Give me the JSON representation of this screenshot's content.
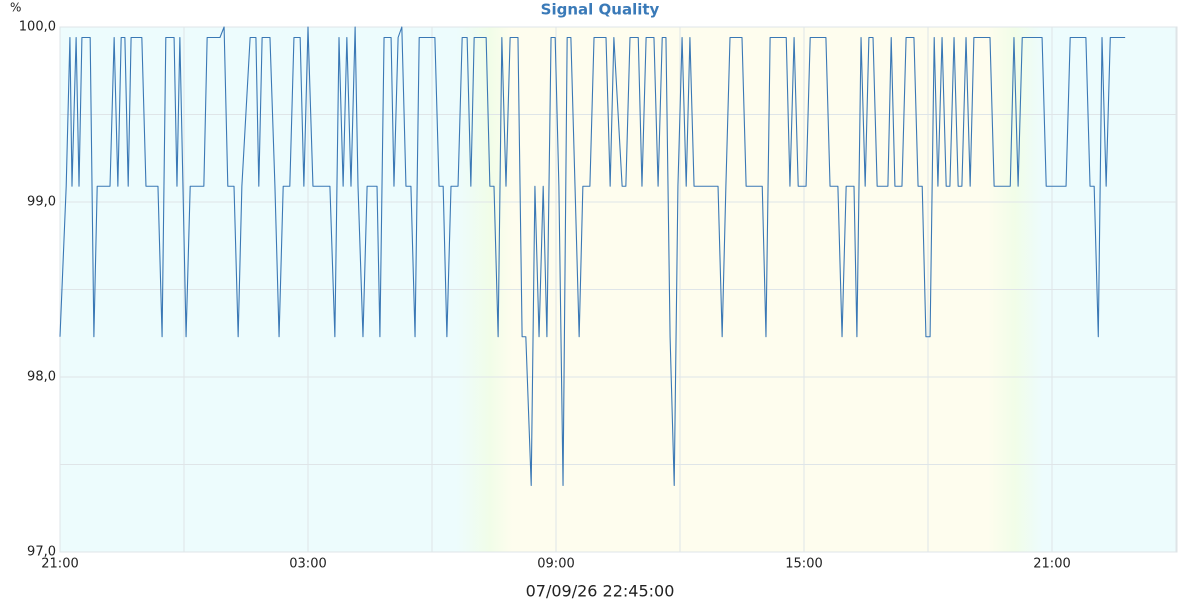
{
  "chart_data": {
    "type": "line",
    "title": "Signal Quality",
    "subtitle": "07/09/26 22:45:00",
    "y_unit": "%",
    "color": "#3a78b5",
    "grid": true,
    "xlim": [
      0,
      27
    ],
    "ylim": [
      97,
      100
    ],
    "xticks": [
      {
        "value": 0,
        "label": "21:00"
      },
      {
        "value": 6,
        "label": "03:00"
      },
      {
        "value": 12,
        "label": "09:00"
      },
      {
        "value": 18,
        "label": "15:00"
      },
      {
        "value": 24,
        "label": "21:00"
      }
    ],
    "xminor": [
      3,
      9,
      15,
      21,
      27
    ],
    "yticks": [
      {
        "value": 97,
        "label": "97,0"
      },
      {
        "value": 98,
        "label": "98,0"
      },
      {
        "value": 99,
        "label": "99,0"
      },
      {
        "value": 100,
        "label": "100,0"
      }
    ],
    "yminor": [
      97.5,
      98.5,
      99.5
    ],
    "x": [
      0,
      0.15,
      0.24,
      0.29,
      0.39,
      0.46,
      0.53,
      0.73,
      0.82,
      0.9,
      1.21,
      1.31,
      1.4,
      1.48,
      1.57,
      1.65,
      1.72,
      1.98,
      2.08,
      2.37,
      2.47,
      2.56,
      2.76,
      2.83,
      2.9,
      3.05,
      3.15,
      3.48,
      3.56,
      3.87,
      3.97,
      4.06,
      4.21,
      4.31,
      4.4,
      4.6,
      4.74,
      4.81,
      4.89,
      5.08,
      5.2,
      5.3,
      5.4,
      5.56,
      5.66,
      5.81,
      5.9,
      6.0,
      6.12,
      6.29,
      6.53,
      6.65,
      6.75,
      6.85,
      6.94,
      7.04,
      7.14,
      7.21,
      7.33,
      7.43,
      7.67,
      7.74,
      7.84,
      8.01,
      8.08,
      8.18,
      8.27,
      8.37,
      8.49,
      8.59,
      8.69,
      9.07,
      9.17,
      9.27,
      9.36,
      9.46,
      9.63,
      9.73,
      9.85,
      9.94,
      10.02,
      10.31,
      10.4,
      10.5,
      10.6,
      10.69,
      10.79,
      10.89,
      11.08,
      11.18,
      11.27,
      11.4,
      11.49,
      11.59,
      11.69,
      11.78,
      11.88,
      11.98,
      12.07,
      12.17,
      12.27,
      12.36,
      12.46,
      12.56,
      12.65,
      12.82,
      12.92,
      13.21,
      13.31,
      13.4,
      13.6,
      13.69,
      13.79,
      13.99,
      14.08,
      14.18,
      14.37,
      14.47,
      14.57,
      14.66,
      14.76,
      14.86,
      14.95,
      15.05,
      15.15,
      15.24,
      15.34,
      15.82,
      15.92,
      16.02,
      16.11,
      16.21,
      16.5,
      16.6,
      16.99,
      17.08,
      17.18,
      17.57,
      17.66,
      17.76,
      17.86,
      18.05,
      18.15,
      18.53,
      18.63,
      18.82,
      18.92,
      19.02,
      19.21,
      19.28,
      19.38,
      19.48,
      19.57,
      19.67,
      19.77,
      20.03,
      20.11,
      20.2,
      20.37,
      20.47,
      20.66,
      20.76,
      20.86,
      20.95,
      21.05,
      21.15,
      21.24,
      21.34,
      21.44,
      21.53,
      21.63,
      21.73,
      21.82,
      21.92,
      22.02,
      22.11,
      22.5,
      22.6,
      22.99,
      23.08,
      23.18,
      23.28,
      23.76,
      23.86,
      24.34,
      24.44,
      24.82,
      24.92,
      25.02,
      25.12,
      25.21,
      25.31,
      25.41,
      25.77
    ],
    "values": [
      98.23,
      99.09,
      99.94,
      99.09,
      99.94,
      99.09,
      99.94,
      99.94,
      98.23,
      99.09,
      99.09,
      99.94,
      99.09,
      99.94,
      99.94,
      99.09,
      99.94,
      99.94,
      99.09,
      99.09,
      98.23,
      99.94,
      99.94,
      99.09,
      99.94,
      98.23,
      99.09,
      99.09,
      99.94,
      99.94,
      100,
      99.09,
      99.09,
      98.23,
      99.09,
      99.94,
      99.94,
      99.09,
      99.94,
      99.94,
      99.09,
      98.23,
      99.09,
      99.09,
      99.94,
      99.94,
      99.09,
      100,
      99.09,
      99.09,
      99.09,
      98.23,
      99.94,
      99.09,
      99.94,
      99.09,
      100,
      99.09,
      98.23,
      99.09,
      99.09,
      98.23,
      99.94,
      99.94,
      99.09,
      99.94,
      100,
      99.09,
      99.09,
      98.23,
      99.94,
      99.94,
      99.09,
      99.09,
      98.23,
      99.09,
      99.09,
      99.94,
      99.94,
      99.09,
      99.94,
      99.94,
      99.09,
      99.09,
      98.23,
      99.94,
      99.09,
      99.94,
      99.94,
      98.23,
      98.23,
      97.38,
      99.09,
      98.23,
      99.09,
      98.23,
      99.94,
      99.94,
      99.09,
      97.38,
      99.94,
      99.94,
      99.09,
      98.23,
      99.09,
      99.09,
      99.94,
      99.94,
      99.09,
      99.94,
      99.09,
      99.09,
      99.94,
      99.94,
      99.09,
      99.94,
      99.94,
      99.09,
      99.94,
      99.94,
      98.23,
      97.38,
      99.09,
      99.94,
      99.09,
      99.94,
      99.09,
      99.09,
      99.09,
      98.23,
      99.09,
      99.94,
      99.94,
      99.09,
      99.09,
      98.23,
      99.94,
      99.94,
      99.09,
      99.94,
      99.09,
      99.09,
      99.94,
      99.94,
      99.09,
      99.09,
      98.23,
      99.09,
      99.09,
      98.23,
      99.94,
      99.09,
      99.94,
      99.94,
      99.09,
      99.09,
      99.94,
      99.09,
      99.09,
      99.94,
      99.94,
      99.09,
      99.09,
      98.23,
      98.23,
      99.94,
      99.09,
      99.94,
      99.09,
      99.09,
      99.94,
      99.09,
      99.09,
      99.94,
      99.09,
      99.94,
      99.94,
      99.09,
      99.09,
      99.94,
      99.09,
      99.94,
      99.94,
      99.09,
      99.09,
      99.94,
      99.94,
      99.09,
      99.09,
      98.23,
      99.94,
      99.09,
      99.94,
      99.94
    ]
  }
}
